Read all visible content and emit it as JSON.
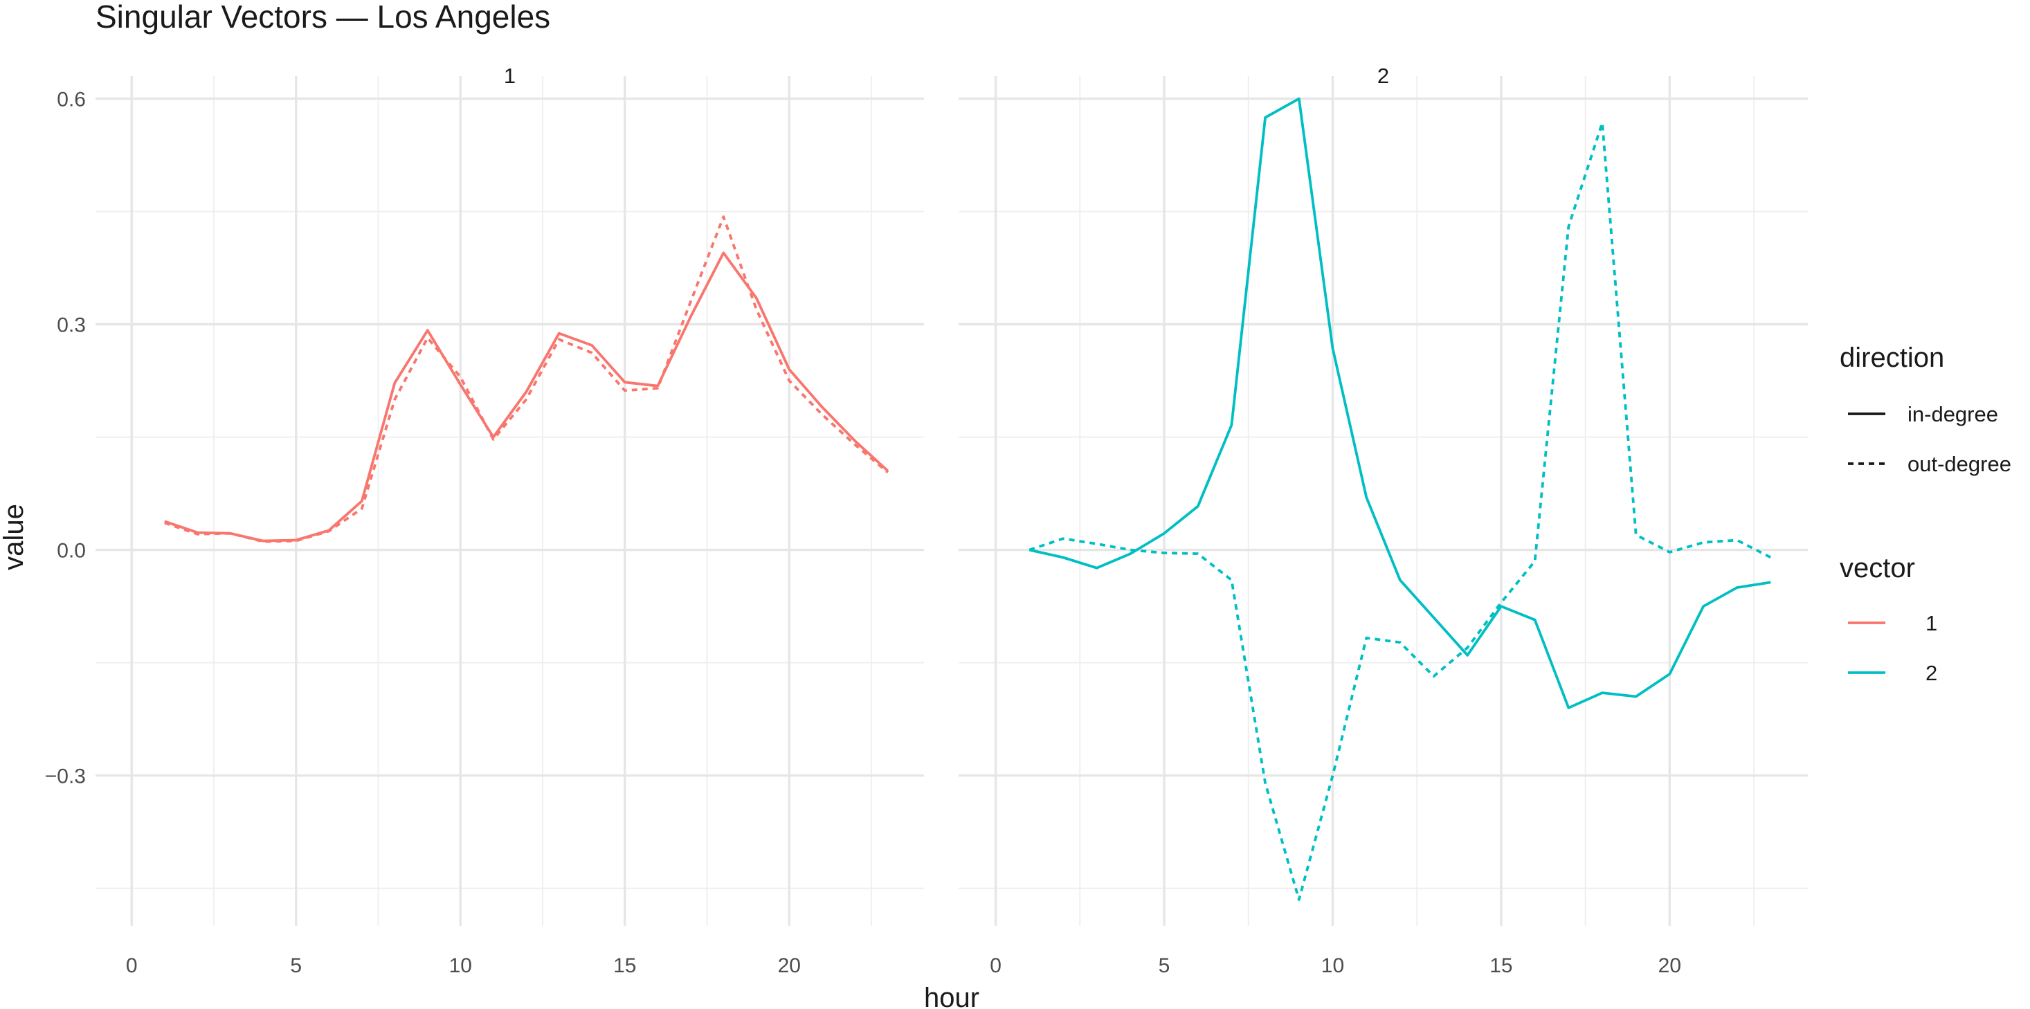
{
  "chart_data": {
    "type": "line",
    "title": "Singular Vectors — Los Angeles",
    "xlabel": "hour",
    "ylabel": "value",
    "xlim": [
      -1.1,
      24.1
    ],
    "ylim": [
      -0.5,
      0.63
    ],
    "x_ticks": [
      0,
      5,
      10,
      15,
      20
    ],
    "x_tick_labels": [
      "0",
      "5",
      "10",
      "15",
      "20"
    ],
    "y_ticks": [
      -0.3,
      0.0,
      0.3,
      0.6
    ],
    "y_tick_labels": [
      "−0.3",
      "0.0",
      "0.3",
      "0.6"
    ],
    "grid": true,
    "facets": [
      "1",
      "2"
    ],
    "legend_position": "right",
    "legends": {
      "direction": {
        "title": "direction",
        "entries": [
          {
            "label": "in-degree",
            "dash": "solid"
          },
          {
            "label": "out-degree",
            "dash": "dashed"
          }
        ]
      },
      "vector": {
        "title": "vector",
        "entries": [
          {
            "label": "1",
            "color": "#F8766D"
          },
          {
            "label": "2",
            "color": "#00BFC4"
          }
        ]
      }
    },
    "x": [
      1,
      2,
      3,
      4,
      5,
      6,
      7,
      8,
      9,
      10,
      11,
      12,
      13,
      14,
      15,
      16,
      17,
      18,
      19,
      20,
      21,
      22,
      23
    ],
    "series": [
      {
        "facet": "1",
        "vector": "1",
        "direction": "in-degree",
        "values": [
          0.038,
          0.023,
          0.022,
          0.012,
          0.013,
          0.026,
          0.065,
          0.222,
          0.292,
          0.22,
          0.15,
          0.21,
          0.288,
          0.272,
          0.223,
          0.218,
          0.31,
          0.395,
          0.335,
          0.24,
          0.19,
          0.145,
          0.105
        ]
      },
      {
        "facet": "1",
        "vector": "1",
        "direction": "out-degree",
        "values": [
          0.036,
          0.021,
          0.022,
          0.011,
          0.012,
          0.025,
          0.055,
          0.2,
          0.282,
          0.23,
          0.147,
          0.2,
          0.28,
          0.262,
          0.212,
          0.215,
          0.33,
          0.443,
          0.32,
          0.225,
          0.18,
          0.14,
          0.103
        ]
      },
      {
        "facet": "2",
        "vector": "2",
        "direction": "in-degree",
        "values": [
          0.0,
          -0.01,
          -0.024,
          -0.005,
          0.022,
          0.058,
          0.166,
          0.575,
          0.6,
          0.268,
          0.07,
          -0.04,
          -0.09,
          -0.14,
          -0.075,
          -0.093,
          -0.21,
          -0.19,
          -0.195,
          -0.165,
          -0.075,
          -0.05,
          -0.043
        ]
      },
      {
        "facet": "2",
        "vector": "2",
        "direction": "out-degree",
        "values": [
          0.0,
          0.015,
          0.008,
          0.0,
          -0.004,
          -0.005,
          -0.04,
          -0.31,
          -0.465,
          -0.3,
          -0.117,
          -0.123,
          -0.168,
          -0.13,
          -0.07,
          -0.015,
          0.43,
          0.568,
          0.02,
          -0.003,
          0.01,
          0.013,
          -0.01
        ]
      }
    ]
  }
}
